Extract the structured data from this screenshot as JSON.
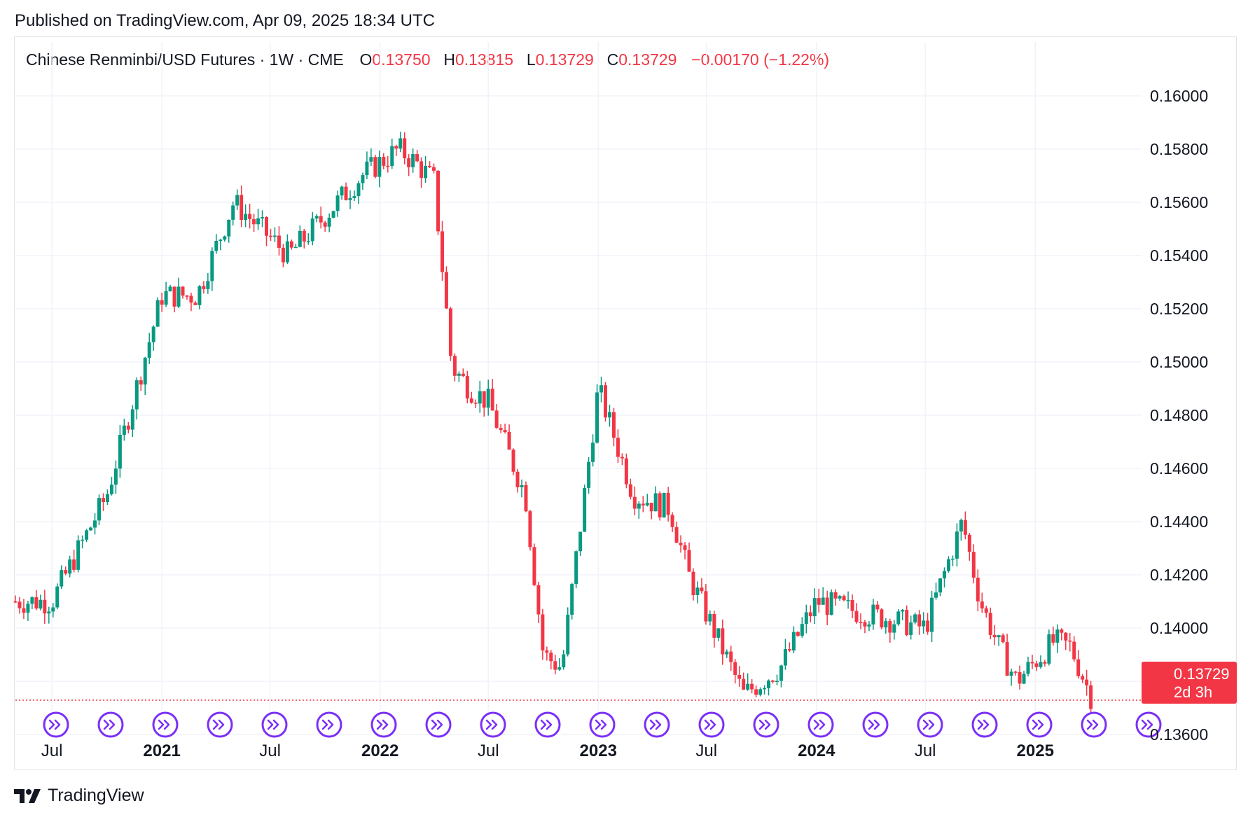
{
  "published_text": "Published on TradingView.com, Apr 09, 2025 18:34 UTC",
  "legend": {
    "title": "Chinese Renminbi/USD Futures · 1W · CME",
    "o_label": "O",
    "o_value": "0.13750",
    "h_label": "H",
    "h_value": "0.13815",
    "l_label": "L",
    "l_value": "0.13729",
    "c_label": "C",
    "c_value": "0.13729",
    "change": "−0.00170 (−1.22%)"
  },
  "price_badge": {
    "price": "0.13729",
    "countdown": "2d 3h"
  },
  "footer": {
    "brand": "TradingView",
    "logo_icon": "tradingview-logo-icon"
  },
  "colors": {
    "up": "#089981",
    "down": "#f23645",
    "event": "#7b2ff7",
    "grid": "#f0f3fa"
  },
  "chart_data": {
    "type": "candlestick",
    "symbol": "Chinese Renminbi/USD Futures",
    "interval": "1W",
    "exchange": "CME",
    "x_range": [
      "2020-05",
      "2025-04"
    ],
    "ylim": [
      0.1355,
      0.1615
    ],
    "y_ticks": [
      "0.16000",
      "0.15800",
      "0.15600",
      "0.15400",
      "0.15200",
      "0.15000",
      "0.14800",
      "0.14600",
      "0.14400",
      "0.14200",
      "0.14000",
      "0.13800",
      "0.13600"
    ],
    "x_ticks": [
      {
        "label": "Jul",
        "bold": false
      },
      {
        "label": "2021",
        "bold": true
      },
      {
        "label": "Jul",
        "bold": false
      },
      {
        "label": "2022",
        "bold": true
      },
      {
        "label": "Jul",
        "bold": false
      },
      {
        "label": "2023",
        "bold": true
      },
      {
        "label": "Jul",
        "bold": false
      },
      {
        "label": "2024",
        "bold": true
      },
      {
        "label": "Jul",
        "bold": false
      },
      {
        "label": "2025",
        "bold": true
      }
    ],
    "grid": true,
    "last_price": 0.13729,
    "event_markers": 21,
    "key_points": [
      {
        "date": "2020-05",
        "close": 0.141
      },
      {
        "date": "2020-07",
        "close": 0.141
      },
      {
        "date": "2020-10",
        "close": 0.145
      },
      {
        "date": "2021-01",
        "close": 0.1525
      },
      {
        "date": "2021-03",
        "close": 0.1525
      },
      {
        "date": "2021-05",
        "close": 0.156
      },
      {
        "date": "2021-08",
        "close": 0.154
      },
      {
        "date": "2021-12",
        "close": 0.157
      },
      {
        "date": "2022-02",
        "close": 0.158
      },
      {
        "date": "2022-03",
        "close": 0.1575
      },
      {
        "date": "2022-04",
        "close": 0.1568
      },
      {
        "date": "2022-05",
        "close": 0.1498
      },
      {
        "date": "2022-06",
        "close": 0.149
      },
      {
        "date": "2022-07",
        "close": 0.1485
      },
      {
        "date": "2022-09",
        "close": 0.145
      },
      {
        "date": "2022-10",
        "close": 0.139
      },
      {
        "date": "2022-11",
        "close": 0.1385
      },
      {
        "date": "2023-01",
        "close": 0.149
      },
      {
        "date": "2023-03",
        "close": 0.145
      },
      {
        "date": "2023-05",
        "close": 0.1445
      },
      {
        "date": "2023-06",
        "close": 0.142
      },
      {
        "date": "2023-08",
        "close": 0.139
      },
      {
        "date": "2023-09",
        "close": 0.1375
      },
      {
        "date": "2023-11",
        "close": 0.1385
      },
      {
        "date": "2024-01",
        "close": 0.141
      },
      {
        "date": "2024-04",
        "close": 0.1405
      },
      {
        "date": "2024-07",
        "close": 0.14
      },
      {
        "date": "2024-09",
        "close": 0.144
      },
      {
        "date": "2024-10",
        "close": 0.141
      },
      {
        "date": "2024-11",
        "close": 0.1393
      },
      {
        "date": "2024-12",
        "close": 0.138
      },
      {
        "date": "2025-02",
        "close": 0.1395
      },
      {
        "date": "2025-03",
        "close": 0.1393
      },
      {
        "date": "2025-04",
        "close": 0.13729
      }
    ]
  }
}
